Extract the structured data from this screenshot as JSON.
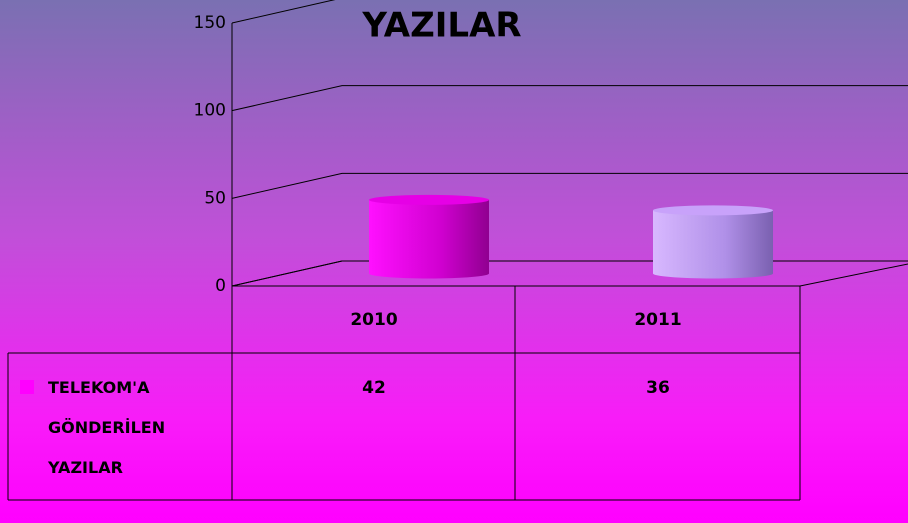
{
  "chart_data": {
    "type": "bar3d",
    "title": "YAZILAR",
    "categories": [
      "2010",
      "2011"
    ],
    "series": [
      {
        "name": "TELEKOM'A GÖNDERİLEN YAZILAR",
        "color": "#ff00ff",
        "point_colors": [
          "#e600e6",
          "#c8a2fa"
        ],
        "values": [
          42,
          36
        ]
      }
    ],
    "ylim": [
      0,
      150
    ],
    "yticks": [
      0,
      50,
      100,
      150
    ],
    "grid": true,
    "data_table": true
  }
}
